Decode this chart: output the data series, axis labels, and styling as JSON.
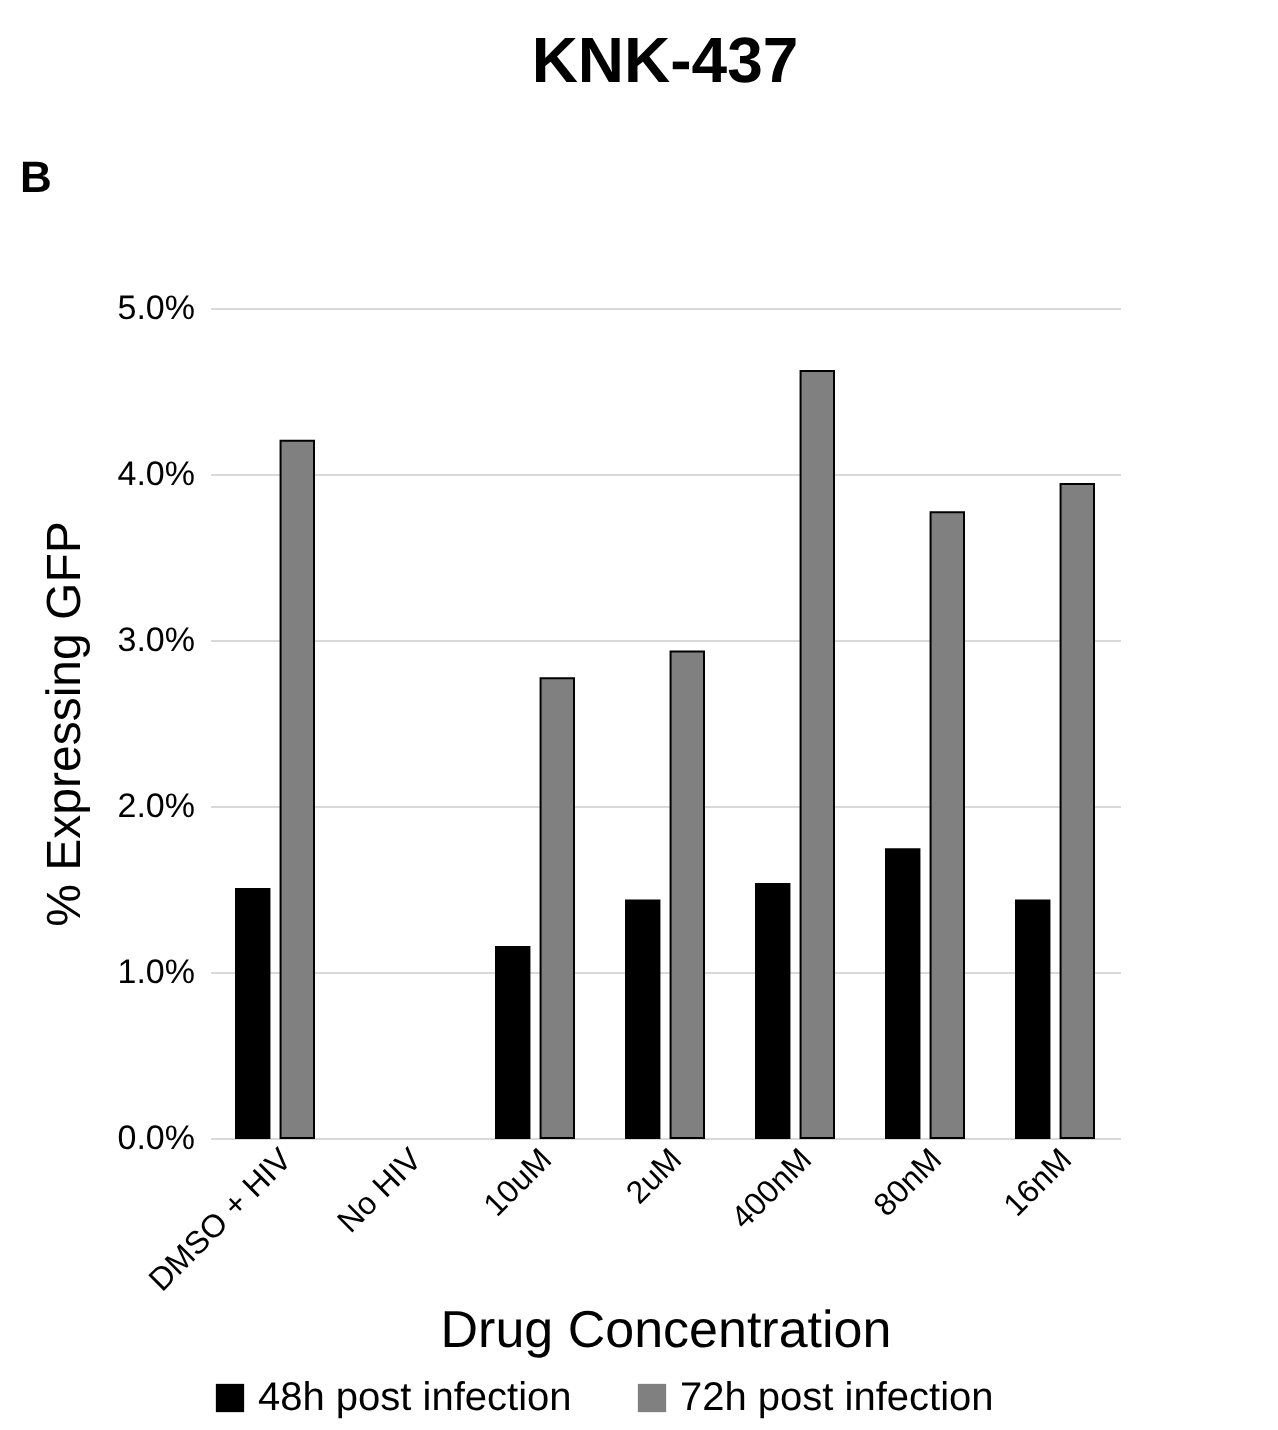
{
  "chart_data": {
    "type": "bar",
    "title": "KNK-437",
    "xlabel": "Drug Concentration",
    "ylabel": "% Expressing GFP",
    "annotations": [
      "B"
    ],
    "categories": [
      "DMSO + HIV",
      "No HIV",
      "10uM",
      "2uM",
      "400nM",
      "80nM",
      "16nM"
    ],
    "series": [
      {
        "name": "48h post infection",
        "color": "#000000",
        "values": [
          1.5,
          null,
          1.15,
          1.43,
          1.53,
          1.74,
          1.43
        ]
      },
      {
        "name": "72h post infection",
        "color": "#808080",
        "values": [
          4.2,
          null,
          2.77,
          2.93,
          4.62,
          3.77,
          3.94
        ]
      }
    ],
    "ylim": [
      0,
      5
    ],
    "yticks": [
      {
        "value": 0,
        "label": "0.0%"
      },
      {
        "value": 1,
        "label": "1.0%"
      },
      {
        "value": 2,
        "label": "2.0%"
      },
      {
        "value": 3,
        "label": "3.0%"
      },
      {
        "value": 4,
        "label": "4.0%"
      },
      {
        "value": 5,
        "label": "5.0%"
      }
    ],
    "grid": "y",
    "legend": "bottom"
  }
}
